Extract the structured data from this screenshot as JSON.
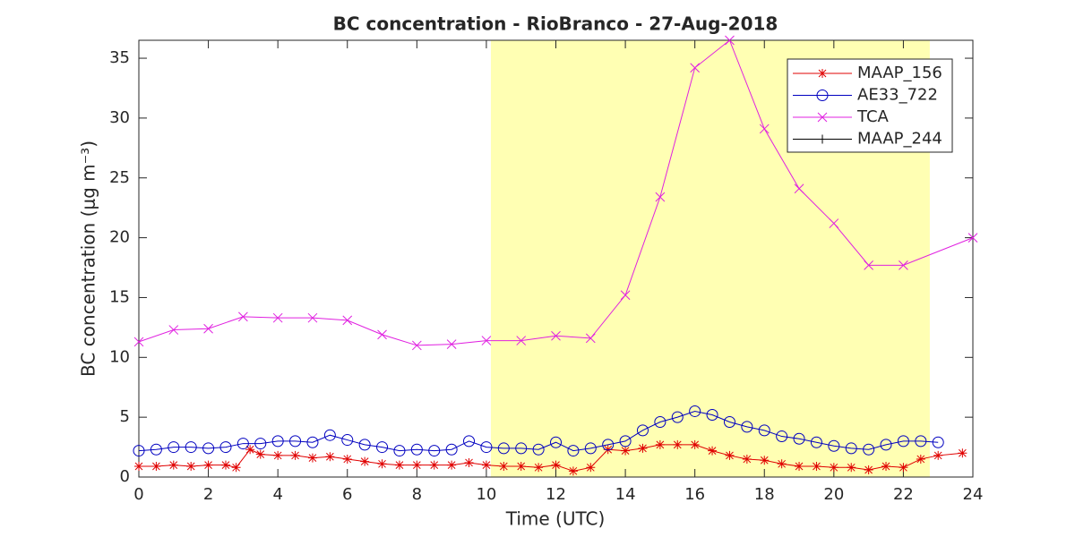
{
  "chart_data": {
    "type": "line",
    "title": "BC concentration  - RioBranco - 27-Aug-2018",
    "xlabel": "Time (UTC)",
    "ylabel": "BC concentration (μg m⁻³)",
    "xlim": [
      0,
      24
    ],
    "ylim": [
      0,
      36.5
    ],
    "xticks": [
      0,
      2,
      4,
      6,
      8,
      10,
      12,
      14,
      16,
      18,
      20,
      22,
      24
    ],
    "yticks": [
      0,
      5,
      10,
      15,
      20,
      25,
      30,
      35
    ],
    "highlight": {
      "x": [
        10.13,
        22.76
      ],
      "color": "#ffffb3"
    },
    "legend": "upper right",
    "series": [
      {
        "name": "MAAP_156",
        "color": "#e00000",
        "marker": "star",
        "x": [
          0,
          0.5,
          1,
          1.5,
          2,
          2.5,
          2.8,
          3.2,
          3.5,
          4,
          4.5,
          5,
          5.5,
          6,
          6.5,
          7,
          7.5,
          8,
          8.5,
          9,
          9.5,
          10,
          10.5,
          11,
          11.5,
          12,
          12.5,
          13,
          13.5,
          14,
          14.5,
          15,
          15.5,
          16,
          16.5,
          17,
          17.5,
          18,
          18.5,
          19,
          19.5,
          20,
          20.5,
          21,
          21.5,
          22,
          22.5,
          23,
          23.7
        ],
        "values": [
          0.9,
          0.9,
          1.0,
          0.9,
          1.0,
          1.0,
          0.8,
          2.3,
          1.9,
          1.8,
          1.8,
          1.6,
          1.7,
          1.5,
          1.3,
          1.1,
          1.0,
          1.0,
          1.0,
          1.0,
          1.2,
          1.0,
          0.9,
          0.9,
          0.8,
          1.0,
          0.5,
          0.8,
          2.3,
          2.2,
          2.4,
          2.7,
          2.7,
          2.7,
          2.2,
          1.8,
          1.5,
          1.4,
          1.1,
          0.9,
          0.9,
          0.8,
          0.8,
          0.6,
          0.9,
          0.8,
          1.5,
          1.8,
          2.0
        ]
      },
      {
        "name": "AE33_722",
        "color": "#0000c0",
        "marker": "circle",
        "x": [
          0,
          0.5,
          1,
          1.5,
          2,
          2.5,
          3,
          3.5,
          4,
          4.5,
          5,
          5.5,
          6,
          6.5,
          7,
          7.5,
          8,
          8.5,
          9,
          9.5,
          10,
          10.5,
          11,
          11.5,
          12,
          12.5,
          13,
          13.5,
          14,
          14.5,
          15,
          15.5,
          16,
          16.5,
          17,
          17.5,
          18,
          18.5,
          19,
          19.5,
          20,
          20.5,
          21,
          21.5,
          22,
          22.5,
          23
        ],
        "values": [
          2.2,
          2.3,
          2.5,
          2.5,
          2.4,
          2.5,
          2.8,
          2.8,
          3.0,
          3.0,
          2.9,
          3.5,
          3.1,
          2.7,
          2.5,
          2.2,
          2.3,
          2.2,
          2.3,
          3.0,
          2.5,
          2.4,
          2.4,
          2.3,
          2.9,
          2.2,
          2.4,
          2.7,
          3.0,
          3.9,
          4.6,
          5.0,
          5.5,
          5.2,
          4.6,
          4.2,
          3.9,
          3.4,
          3.2,
          2.9,
          2.6,
          2.4,
          2.3,
          2.7,
          3.0,
          3.0,
          2.9
        ]
      },
      {
        "name": "TCA",
        "color": "#e020e0",
        "marker": "x",
        "x": [
          0,
          1,
          2,
          3,
          4,
          5,
          6,
          7,
          8,
          9,
          10,
          11,
          12,
          13,
          14,
          15,
          16,
          17,
          18,
          19,
          20,
          21,
          22,
          24
        ],
        "values": [
          11.3,
          12.3,
          12.4,
          13.4,
          13.3,
          13.3,
          13.1,
          11.9,
          11.0,
          11.1,
          11.4,
          11.4,
          11.8,
          11.6,
          15.2,
          23.4,
          34.2,
          36.5,
          29.1,
          24.1,
          21.2,
          17.7,
          17.7,
          20.0
        ]
      },
      {
        "name": "MAAP_244",
        "color": "#000000",
        "marker": "plus",
        "x": [],
        "values": []
      }
    ]
  }
}
